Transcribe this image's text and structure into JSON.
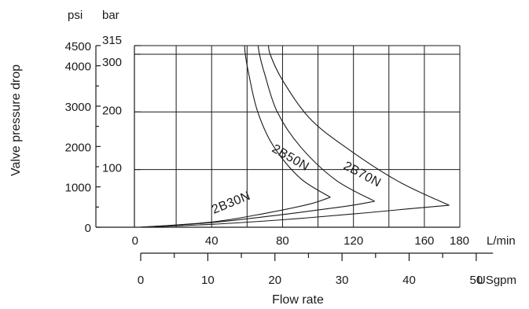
{
  "chart_data": {
    "type": "line",
    "y_units": {
      "left": "psi",
      "right": "bar"
    },
    "ylabel": "Valve pressure drop",
    "xlabel": "Flow rate",
    "x_units": {
      "primary": "L/min",
      "secondary": "USgpm"
    },
    "xlim_lpm": [
      0,
      180
    ],
    "ylim_bar": [
      0,
      315
    ],
    "psi_ticks": [
      "4500",
      "4000",
      "3000",
      "2000",
      "1000",
      "0"
    ],
    "psi_tick_values": [
      4500,
      4000,
      3000,
      2000,
      1000,
      0
    ],
    "bar_ticks": [
      "315",
      "300",
      "200",
      "100"
    ],
    "bar_tick_values": [
      315,
      300,
      200,
      100
    ],
    "lpm_ticks": [
      "0",
      "40",
      "80",
      "120",
      "160",
      "180"
    ],
    "lpm_tick_values": [
      0,
      40,
      80,
      120,
      160,
      180
    ],
    "gpm_ticks": [
      "0",
      "10",
      "20",
      "30",
      "40",
      "50"
    ],
    "gpm_tick_values": [
      0,
      10,
      20,
      30,
      40,
      50
    ],
    "grid": true,
    "series": [
      {
        "name": "2B30N",
        "lower": [
          [
            0,
            0
          ],
          [
            40,
            9
          ],
          [
            70,
            24
          ],
          [
            95,
            40
          ],
          [
            107,
            52
          ]
        ],
        "upper": [
          [
            107,
            52
          ],
          [
            90,
            85
          ],
          [
            75,
            140
          ],
          [
            66,
            200
          ],
          [
            61,
            265
          ],
          [
            59,
            300
          ],
          [
            58.5,
            322
          ]
        ]
      },
      {
        "name": "2B50N",
        "lower": [
          [
            0,
            0
          ],
          [
            40,
            8
          ],
          [
            80,
            22
          ],
          [
            115,
            36
          ],
          [
            132,
            45
          ]
        ],
        "upper": [
          [
            132,
            45
          ],
          [
            110,
            82
          ],
          [
            90,
            140
          ],
          [
            77,
            200
          ],
          [
            70,
            265
          ],
          [
            67,
            300
          ],
          [
            66,
            322
          ]
        ]
      },
      {
        "name": "2B70N",
        "lower": [
          [
            0,
            0
          ],
          [
            40,
            5
          ],
          [
            80,
            13
          ],
          [
            120,
            23
          ],
          [
            155,
            33
          ],
          [
            174,
            38
          ]
        ],
        "upper": [
          [
            174,
            38
          ],
          [
            145,
            80
          ],
          [
            115,
            140
          ],
          [
            95,
            190
          ],
          [
            80,
            255
          ],
          [
            73,
            300
          ],
          [
            72,
            322
          ]
        ]
      }
    ]
  }
}
